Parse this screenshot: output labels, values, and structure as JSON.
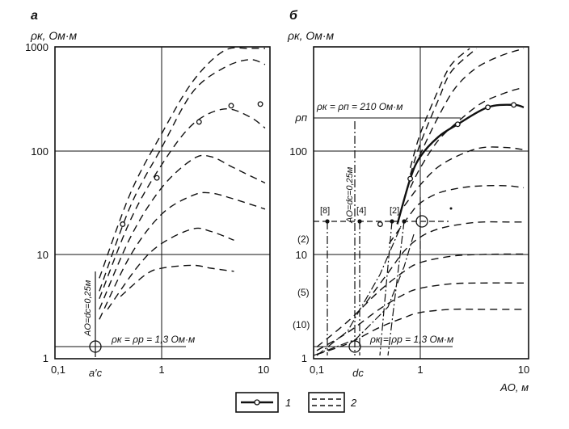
{
  "chart_data": [
    {
      "panel": "a",
      "type": "line",
      "ylabel": "ρк, Ом·м",
      "xscale": "log",
      "yscale": "log",
      "xlim": [
        0.1,
        10
      ],
      "ylim": [
        1,
        1000
      ],
      "x_ticks": [
        "0,1",
        "1",
        "10"
      ],
      "y_ticks": [
        "1",
        "10",
        "100",
        "1000"
      ],
      "x_special_label": "a′c",
      "vertical_label": "AO=dc=0,25м",
      "bottom_label": "ρк = ρр = 1,3 Ом·м",
      "series": [
        {
          "style": "dashed",
          "x": [
            0.25,
            0.5,
            1.0,
            2.0,
            4.0,
            7.0,
            10.0
          ],
          "y": [
            6.0,
            40,
            150,
            480,
            950,
            1000,
            1000
          ]
        },
        {
          "style": "dashed",
          "x": [
            0.25,
            0.5,
            1.0,
            2.0,
            4.0,
            7.0,
            10.0
          ],
          "y": [
            4.5,
            30,
            110,
            380,
            650,
            780,
            700
          ]
        },
        {
          "style": "dashed",
          "x": [
            0.25,
            0.5,
            1.0,
            2.0,
            4.0,
            7.0,
            10.0
          ],
          "y": [
            3.8,
            22,
            75,
            185,
            260,
            220,
            170
          ]
        },
        {
          "style": "dashed",
          "x": [
            0.25,
            0.5,
            1.0,
            2.0,
            3.0,
            5.0,
            10.0
          ],
          "y": [
            3.0,
            15,
            45,
            85,
            90,
            70,
            50
          ]
        },
        {
          "style": "dashed",
          "x": [
            0.25,
            0.5,
            1.0,
            2.0,
            3.0,
            5.0,
            10.0
          ],
          "y": [
            2.4,
            10,
            25,
            38,
            40,
            35,
            28
          ]
        },
        {
          "style": "dashed",
          "x": [
            0.3,
            0.6,
            1.0,
            2.0,
            3.0,
            5.0
          ],
          "y": [
            3.0,
            8,
            13,
            18,
            17,
            14
          ]
        },
        {
          "style": "dashed",
          "x": [
            0.4,
            0.7,
            1.0,
            2.0,
            3.0,
            5.0
          ],
          "y": [
            4.0,
            6.5,
            7.5,
            8.0,
            7.5,
            7.0
          ]
        }
      ],
      "markers": [
        {
          "x": 0.42,
          "y": 20
        },
        {
          "x": 0.9,
          "y": 56
        },
        {
          "x": 2.3,
          "y": 195
        },
        {
          "x": 4.7,
          "y": 280
        },
        {
          "x": 9.0,
          "y": 290
        }
      ]
    },
    {
      "panel": "б",
      "type": "line",
      "ylabel": "ρк, Ом·м",
      "xlabel": "AO, м",
      "xscale": "log",
      "yscale": "log",
      "xlim": [
        0.1,
        10
      ],
      "ylim": [
        1,
        1000
      ],
      "x_ticks": [
        "0,1",
        "1",
        "10"
      ],
      "y_ticks": [
        "1",
        "10",
        "100"
      ],
      "y_special_label": "ρп",
      "x_special_label": "dc",
      "y_side_labels": [
        "(2)",
        "(5)",
        "(10)"
      ],
      "top_label": "ρк = ρп = 210 Ом·м",
      "bottom_label": "ρк = ρр = 1,3 Ом·м",
      "vertical_label": "AO=dc=0,25м",
      "point_labels": [
        "[8]",
        "[4]",
        "[2]"
      ],
      "solid_series": {
        "style": "solid",
        "x": [
          0.6,
          0.8,
          1.0,
          1.5,
          2.3,
          4.5,
          8.0,
          10.0
        ],
        "y": [
          20,
          55,
          90,
          140,
          185,
          270,
          285,
          270
        ]
      },
      "series": [
        {
          "style": "dashed",
          "x": [
            0.8,
            1.0,
            1.5,
            2.0,
            3.0
          ],
          "y": [
            70,
            150,
            400,
            700,
            1000
          ]
        },
        {
          "style": "dashed",
          "x": [
            0.8,
            1.0,
            1.5,
            2.0,
            3.5
          ],
          "y": [
            60,
            120,
            320,
            600,
            1000
          ]
        },
        {
          "style": "dashed",
          "x": [
            0.8,
            1.0,
            1.5,
            2.2,
            3.5,
            6.0,
            10.0
          ],
          "y": [
            55,
            95,
            220,
            420,
            650,
            850,
            1000
          ]
        },
        {
          "style": "dashed",
          "x": [
            0.8,
            1.0,
            1.5,
            2.5,
            4.0,
            7.0,
            10.0
          ],
          "y": [
            45,
            70,
            130,
            210,
            300,
            380,
            420
          ]
        },
        {
          "style": "dashed",
          "x": [
            0.7,
            1.0,
            1.5,
            2.5,
            4.0,
            7.0,
            10.0
          ],
          "y": [
            30,
            48,
            72,
            95,
            110,
            110,
            105
          ]
        },
        {
          "style": "dashed",
          "x": [
            0.5,
            0.8,
            1.0,
            1.5,
            2.5,
            4.0,
            7.0,
            10.0
          ],
          "y": [
            13,
            25,
            32,
            40,
            45,
            47,
            47,
            45
          ]
        },
        {
          "style": "dashed",
          "x": [
            0.3,
            0.5,
            0.7,
            1.0,
            1.5,
            2.5,
            4.0,
            7.0,
            10.0
          ],
          "y": [
            3.5,
            7,
            11,
            15,
            18,
            20,
            21,
            21,
            21
          ]
        },
        {
          "style": "dashed",
          "x": [
            0.1,
            0.2,
            0.4,
            0.7,
            1.0,
            2.0,
            4.0,
            10.0
          ],
          "y": [
            1.3,
            2.3,
            4.5,
            7.0,
            8.5,
            9.8,
            10.2,
            10.3
          ]
        },
        {
          "style": "dashed",
          "x": [
            0.1,
            0.2,
            0.4,
            0.7,
            1.0,
            2.0,
            4.0,
            10.0
          ],
          "y": [
            1.2,
            1.8,
            3.0,
            4.2,
            4.8,
            5.3,
            5.4,
            5.4
          ]
        },
        {
          "style": "dashed",
          "x": [
            0.1,
            0.2,
            0.4,
            0.7,
            1.0,
            2.0,
            4.0,
            10.0
          ],
          "y": [
            1.1,
            1.4,
            2.0,
            2.5,
            2.8,
            3.0,
            3.0,
            3.0
          ]
        }
      ],
      "markers": [
        {
          "x": 0.41,
          "y": 20
        },
        {
          "x": 0.8,
          "y": 55
        },
        {
          "x": 2.3,
          "y": 185
        },
        {
          "x": 4.5,
          "y": 270
        },
        {
          "x": 8.0,
          "y": 285
        }
      ]
    }
  ],
  "legend": {
    "item1": "1",
    "item2": "2"
  }
}
